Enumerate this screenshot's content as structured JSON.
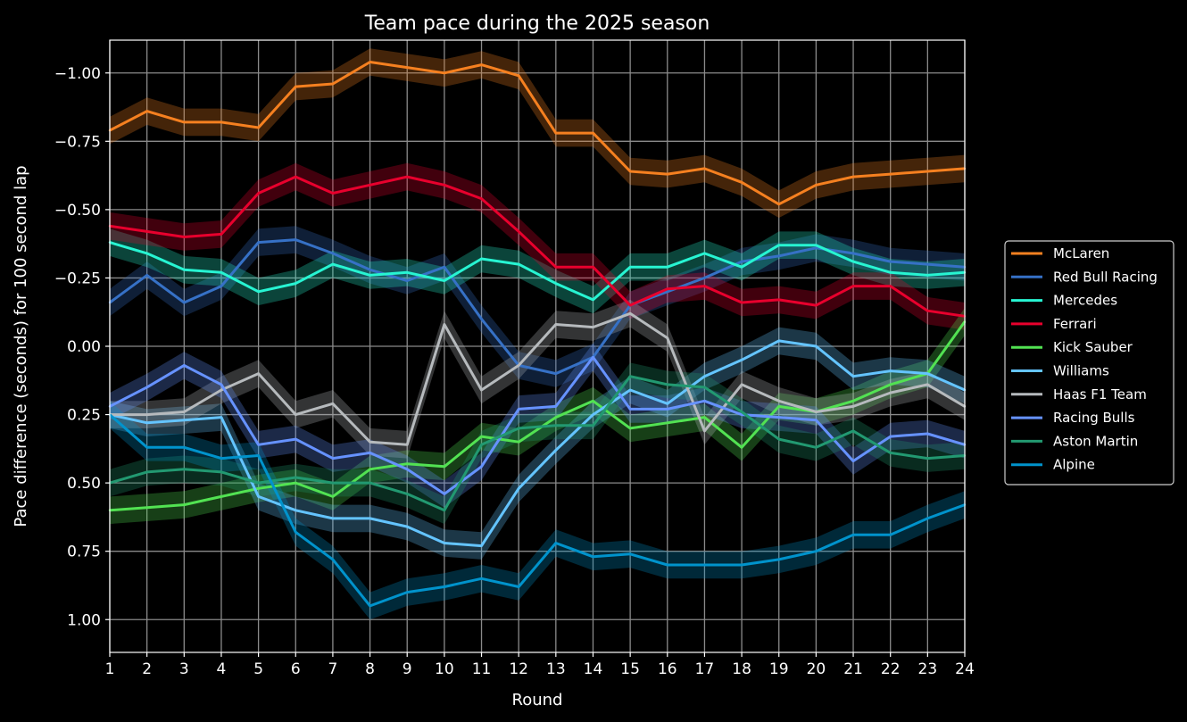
{
  "chart_data": {
    "type": "line",
    "title": "Team pace during the 2025 season",
    "xlabel": "Round",
    "ylabel": "Pace difference (seconds) for 100 second lap",
    "xlim": [
      1,
      24
    ],
    "ylim": [
      1.12,
      -1.12
    ],
    "y_inverted": true,
    "grid": true,
    "legend_position": "right-center",
    "x_ticks": [
      1,
      2,
      3,
      4,
      5,
      6,
      7,
      8,
      9,
      10,
      11,
      12,
      13,
      14,
      15,
      16,
      17,
      18,
      19,
      20,
      21,
      22,
      23,
      24
    ],
    "y_ticks": [
      -1.0,
      -0.75,
      -0.5,
      -0.25,
      0.0,
      0.25,
      0.5,
      0.75,
      1.0
    ],
    "y_tick_labels": [
      "−1.00",
      "−0.75",
      "−0.50",
      "−0.25",
      "0.00",
      "0.25",
      "0.50",
      "0.75",
      "1.00"
    ],
    "band_halfwidth": 0.05,
    "series": [
      {
        "name": "McLaren",
        "color": "#f58020",
        "values": [
          -0.79,
          -0.86,
          -0.82,
          -0.82,
          -0.8,
          -0.95,
          -0.96,
          -1.04,
          -1.02,
          -1.0,
          -1.03,
          -0.99,
          -0.78,
          -0.78,
          -0.64,
          -0.63,
          -0.65,
          -0.6,
          -0.52,
          -0.59,
          -0.62,
          -0.63,
          -0.64,
          -0.65
        ]
      },
      {
        "name": "Red Bull Racing",
        "color": "#3671c6",
        "values": [
          -0.16,
          -0.26,
          -0.16,
          -0.22,
          -0.38,
          -0.39,
          -0.34,
          -0.28,
          -0.24,
          -0.29,
          -0.1,
          0.07,
          0.1,
          0.04,
          -0.15,
          -0.2,
          -0.25,
          -0.31,
          -0.33,
          -0.36,
          -0.34,
          -0.31,
          -0.3,
          -0.29
        ]
      },
      {
        "name": "Mercedes",
        "color": "#27f4d2",
        "values": [
          -0.38,
          -0.34,
          -0.28,
          -0.27,
          -0.2,
          -0.23,
          -0.3,
          -0.26,
          -0.27,
          -0.24,
          -0.32,
          -0.3,
          -0.23,
          -0.17,
          -0.29,
          -0.29,
          -0.34,
          -0.29,
          -0.37,
          -0.37,
          -0.31,
          -0.27,
          -0.26,
          -0.27
        ]
      },
      {
        "name": "Ferrari",
        "color": "#e8002d",
        "values": [
          -0.44,
          -0.42,
          -0.4,
          -0.41,
          -0.56,
          -0.62,
          -0.56,
          -0.59,
          -0.62,
          -0.59,
          -0.54,
          -0.42,
          -0.29,
          -0.29,
          -0.15,
          -0.21,
          -0.22,
          -0.16,
          -0.17,
          -0.15,
          -0.22,
          -0.22,
          -0.13,
          -0.11
        ]
      },
      {
        "name": "Kick Sauber",
        "color": "#52e252",
        "values": [
          0.6,
          0.59,
          0.58,
          0.55,
          0.52,
          0.5,
          0.55,
          0.45,
          0.43,
          0.44,
          0.33,
          0.35,
          0.26,
          0.2,
          0.3,
          0.28,
          0.26,
          0.37,
          0.22,
          0.24,
          0.2,
          0.14,
          0.1,
          -0.09
        ]
      },
      {
        "name": "Williams",
        "color": "#64c4ff",
        "values": [
          0.25,
          0.28,
          0.27,
          0.26,
          0.55,
          0.6,
          0.63,
          0.63,
          0.66,
          0.72,
          0.73,
          0.52,
          0.38,
          0.25,
          0.16,
          0.21,
          0.11,
          0.05,
          -0.02,
          0.0,
          0.11,
          0.09,
          0.1,
          0.16
        ]
      },
      {
        "name": "Haas F1 Team",
        "color": "#b6babd",
        "values": [
          0.25,
          0.25,
          0.24,
          0.16,
          0.1,
          0.25,
          0.21,
          0.35,
          0.36,
          -0.08,
          0.16,
          0.07,
          -0.08,
          -0.07,
          -0.12,
          -0.03,
          0.31,
          0.14,
          0.2,
          0.24,
          0.22,
          0.17,
          0.14,
          0.22
        ]
      },
      {
        "name": "Racing Bulls",
        "color": "#6692ff",
        "values": [
          0.22,
          0.15,
          0.07,
          0.14,
          0.36,
          0.34,
          0.41,
          0.39,
          0.45,
          0.54,
          0.44,
          0.23,
          0.22,
          0.04,
          0.23,
          0.23,
          0.2,
          0.25,
          0.26,
          0.27,
          0.42,
          0.33,
          0.32,
          0.36
        ]
      },
      {
        "name": "Aston Martin",
        "color": "#229971",
        "values": [
          0.5,
          0.46,
          0.45,
          0.46,
          0.5,
          0.48,
          0.5,
          0.5,
          0.54,
          0.6,
          0.36,
          0.3,
          0.29,
          0.29,
          0.11,
          0.14,
          0.15,
          0.24,
          0.34,
          0.37,
          0.31,
          0.39,
          0.41,
          0.4
        ]
      },
      {
        "name": "Alpine",
        "color": "#0093cc",
        "values": [
          0.25,
          0.37,
          0.37,
          0.41,
          0.4,
          0.68,
          0.78,
          0.95,
          0.9,
          0.88,
          0.85,
          0.88,
          0.72,
          0.77,
          0.76,
          0.8,
          0.8,
          0.8,
          0.78,
          0.75,
          0.69,
          0.69,
          0.63,
          0.58
        ]
      }
    ]
  }
}
